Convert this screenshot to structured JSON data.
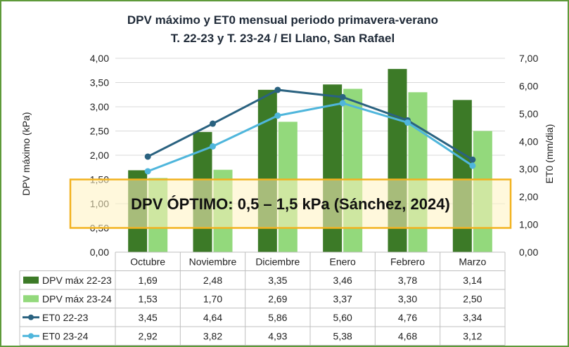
{
  "chart_data": {
    "type": "bar",
    "title": "DPV máximo y ET0 mensual periodo primavera-verano",
    "subtitle": "T. 22-23 y T. 23-24 / El Llano, San Rafael",
    "categories": [
      "Octubre",
      "Noviembre",
      "Diciembre",
      "Enero",
      "Febrero",
      "Marzo"
    ],
    "series": [
      {
        "name": "DPV máx 22-23",
        "type": "bar",
        "axis": "left",
        "color": "#3c7a27",
        "values": [
          1.69,
          2.48,
          3.35,
          3.46,
          3.78,
          3.14
        ],
        "labels": [
          "1,69",
          "2,48",
          "3,35",
          "3,46",
          "3,78",
          "3,14"
        ]
      },
      {
        "name": "DPV máx 23-24",
        "type": "bar",
        "axis": "left",
        "color": "#93d97c",
        "values": [
          1.53,
          1.7,
          2.69,
          3.37,
          3.3,
          2.5
        ],
        "labels": [
          "1,53",
          "1,70",
          "2,69",
          "3,37",
          "3,30",
          "2,50"
        ]
      },
      {
        "name": "ET0 22-23",
        "type": "line",
        "axis": "right",
        "color": "#2a6280",
        "values": [
          3.45,
          4.64,
          5.86,
          5.6,
          4.76,
          3.34
        ],
        "labels": [
          "3,45",
          "4,64",
          "5,86",
          "5,60",
          "4,76",
          "3,34"
        ]
      },
      {
        "name": "ET0 23-24",
        "type": "line",
        "axis": "right",
        "color": "#4fb6dc",
        "values": [
          2.92,
          3.82,
          4.93,
          5.38,
          4.68,
          3.12
        ],
        "labels": [
          "2,92",
          "3,82",
          "4,93",
          "5,38",
          "4,68",
          "3,12"
        ]
      }
    ],
    "y_left": {
      "label": "DPV máximo (kPa)",
      "min": 0,
      "max": 4,
      "step": 0.5,
      "ticks": [
        "0,00",
        "0,50",
        "1,00",
        "1,50",
        "2,00",
        "2,50",
        "3,00",
        "3,50",
        "4,00"
      ]
    },
    "y_right": {
      "label": "ET0 (mm/dia)",
      "min": 0,
      "max": 7,
      "step": 1,
      "ticks": [
        "0,00",
        "1,00",
        "2,00",
        "3,00",
        "4,00",
        "5,00",
        "6,00",
        "7,00"
      ]
    },
    "band": {
      "from": 0.5,
      "to": 1.5,
      "axis": "left",
      "text": "DPV ÓPTIMO: 0,5 – 1,5 kPa (Sánchez, 2024)",
      "fill": "#fff2c0",
      "stroke": "#f2b21f"
    },
    "grid": true,
    "legend": "data-table"
  }
}
